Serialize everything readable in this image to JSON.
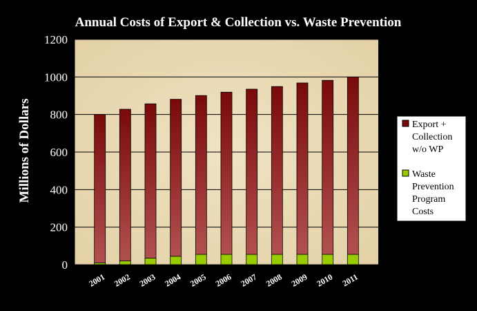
{
  "chart_data": {
    "type": "bar",
    "stacked": true,
    "title": "Annual Costs of Export & Collection vs. Waste Prevention",
    "xlabel": "",
    "ylabel": "Millions of Dollars",
    "categories": [
      "2001",
      "2002",
      "2003",
      "2004",
      "2005",
      "2006",
      "2007",
      "2008",
      "2009",
      "2010",
      "2011"
    ],
    "ylim": [
      0,
      1200
    ],
    "yticks": [
      0,
      200,
      400,
      600,
      800,
      1000,
      1200
    ],
    "grid": true,
    "legend_position": "right",
    "series": [
      {
        "name": "Waste Prevention Program Costs",
        "legend_lines": [
          "Waste",
          "Prevention",
          "Program",
          "Costs"
        ],
        "color": "#99cc00",
        "values": [
          10,
          20,
          35,
          45,
          55,
          55,
          55,
          55,
          55,
          55,
          55
        ]
      },
      {
        "name": "Export + Collection w/o WP",
        "legend_lines": [
          "Export +",
          "Collection",
          "w/o WP"
        ],
        "color": "#8b1a1a",
        "values": [
          790,
          808,
          822,
          836,
          846,
          864,
          880,
          894,
          913,
          927,
          945
        ]
      }
    ],
    "colors": {
      "background": "#000000",
      "plot_area": "#ecdcb6",
      "text": "#ffffff",
      "legend_bg": "#ffffff",
      "legend_text": "#000000",
      "bar_top": "#7a0a0a",
      "bar_bottom": "#b25050"
    }
  }
}
